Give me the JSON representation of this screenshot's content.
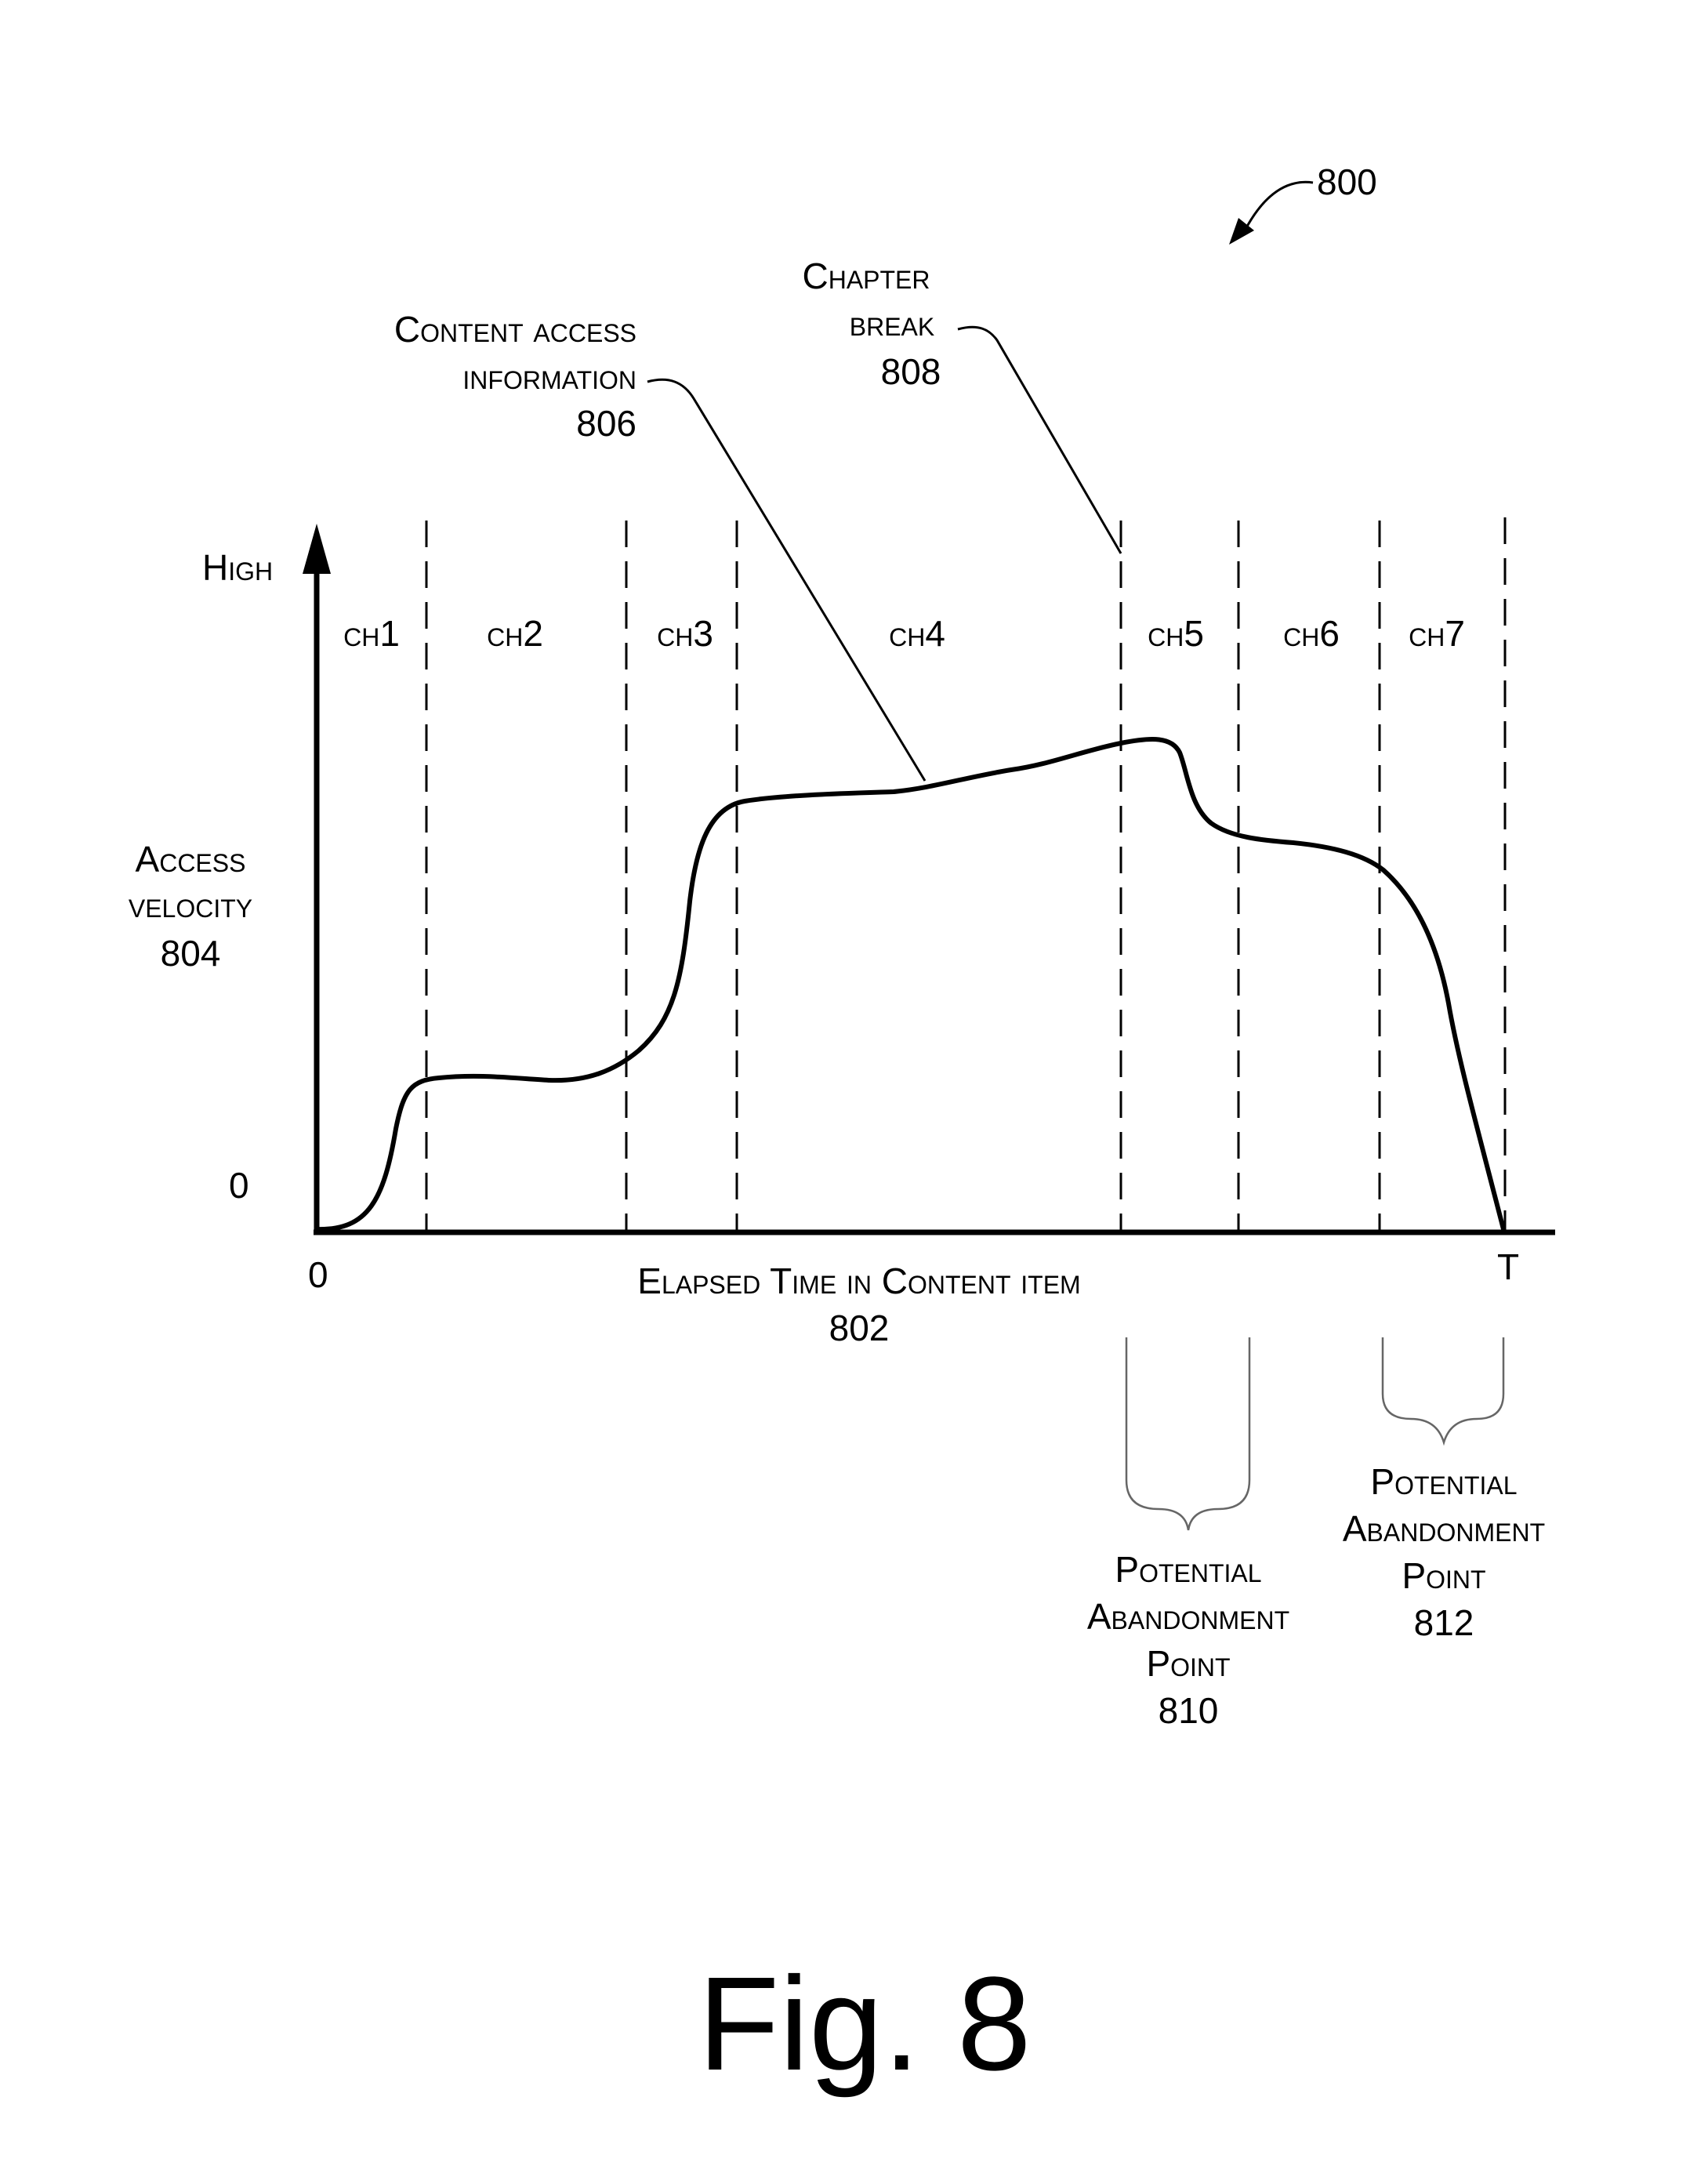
{
  "figure": {
    "ref": "800",
    "caption": "Fig. 8"
  },
  "axes": {
    "y_high": "High",
    "y_zero": "0",
    "y_label_line1": "Access",
    "y_label_line2": "velocity",
    "y_label_ref": "804",
    "x_zero": "0",
    "x_end": "T",
    "x_label": "Elapsed Time in Content item",
    "x_label_ref": "802"
  },
  "chapters": [
    "ch1",
    "ch2",
    "ch3",
    "ch4",
    "ch5",
    "ch6",
    "ch7"
  ],
  "callouts": {
    "content_access_line1": "Content access",
    "content_access_line2": "information",
    "content_access_ref": "806",
    "chapter_break_line1": "Chapter",
    "chapter_break_line2": "break",
    "chapter_break_ref": "808"
  },
  "abandonment": [
    {
      "line1": "Potential",
      "line2": "Abandonment",
      "line3": "Point",
      "ref": "810"
    },
    {
      "line1": "Potential",
      "line2": "Abandonment",
      "line3": "Point",
      "ref": "812"
    }
  ]
}
